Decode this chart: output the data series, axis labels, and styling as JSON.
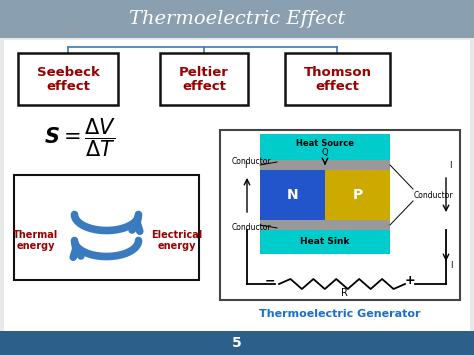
{
  "title": "Thermoelectric Effect",
  "title_color": "white",
  "title_fontsize": 14,
  "bg_color": "#e8e8e8",
  "header_bg": "#8a9fb0",
  "footer_bg": "#2c5f8a",
  "footer_text": "5",
  "box_texts": [
    [
      "Seebeck",
      "effect"
    ],
    [
      "Peltier",
      "effect"
    ],
    [
      "Thomson",
      "effect"
    ]
  ],
  "box_text_color": "#990000",
  "formula_color": "#000000",
  "thermal_label": "Thermal\nenergy",
  "electrical_label": "Electrical\nenergy",
  "generator_label": "Thermoelectric Generator",
  "generator_label_color": "#1a6fcc",
  "arrow_color": "#3a7abf",
  "connector_color": "#3a7abf",
  "box_border_color": "#111111",
  "content_bg": "#ffffff",
  "heat_source_color": "#00cccc",
  "heat_sink_color": "#00cccc",
  "n_block_color": "#2255cc",
  "p_block_color": "#ccaa00",
  "gray_conductor": "#999999"
}
